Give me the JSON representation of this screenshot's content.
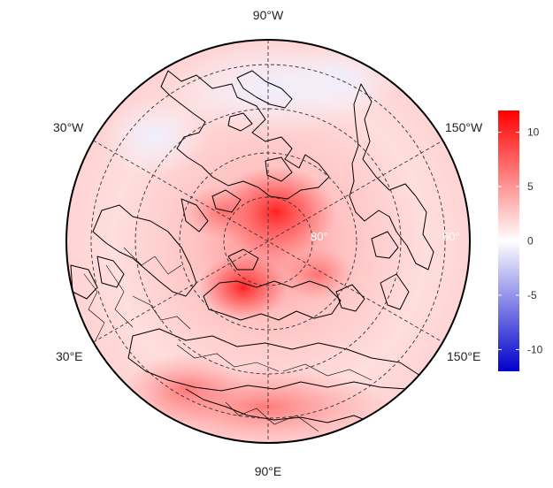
{
  "map": {
    "projection": "north-polar-stereographic",
    "colormap": [
      "#0000cc",
      "#ffffff",
      "#ff0000"
    ],
    "longitude_labels": {
      "top": "90°W",
      "upper_left": "30°W",
      "upper_right": "150°W",
      "lower_left": "30°E",
      "lower_right": "150°E",
      "bottom": "90°E"
    },
    "latitude_labels": {
      "inner": "80°",
      "outer": "60°"
    },
    "colorbar": {
      "min": -12,
      "max": 12,
      "ticks": [
        10,
        5,
        0,
        -5,
        -10
      ],
      "tick_labels": [
        "10",
        "5",
        "0",
        "-5",
        "-10"
      ]
    }
  }
}
